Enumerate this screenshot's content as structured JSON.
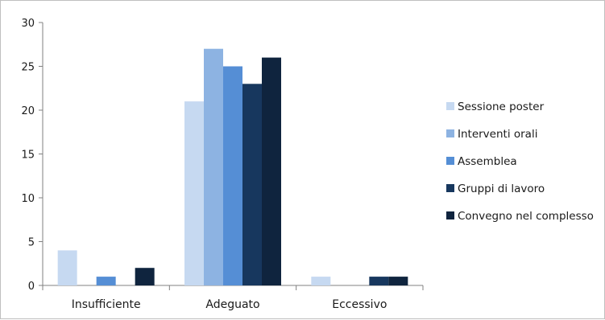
{
  "chart_data": {
    "type": "bar",
    "categories": [
      "Insufficiente",
      "Adeguato",
      "Eccessivo"
    ],
    "series": [
      {
        "name": "Sessione poster",
        "color": "#c6d9f1",
        "values": [
          4,
          21,
          1
        ]
      },
      {
        "name": "Interventi orali",
        "color": "#8db3e2",
        "values": [
          0,
          27,
          0
        ]
      },
      {
        "name": "Assemblea",
        "color": "#558ed5",
        "values": [
          1,
          25,
          0
        ]
      },
      {
        "name": "Gruppi di lavoro",
        "color": "#17375e",
        "values": [
          0,
          23,
          1
        ]
      },
      {
        "name": "Convegno nel complesso",
        "color": "#0f243e",
        "values": [
          2,
          26,
          1
        ]
      }
    ],
    "ylim": [
      0,
      30
    ],
    "yticks": [
      0,
      5,
      10,
      15,
      20,
      25,
      30
    ],
    "grid": false,
    "legend_position": "right"
  }
}
